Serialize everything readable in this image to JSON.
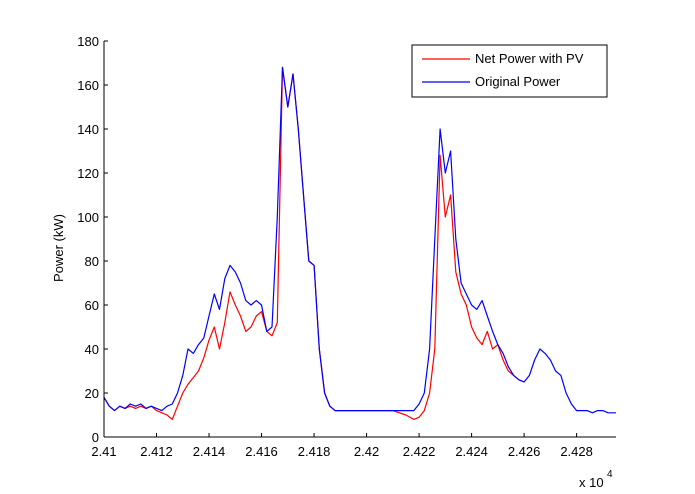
{
  "chart_data": {
    "type": "line",
    "title": "",
    "xlabel": "",
    "ylabel": "Power (kW)",
    "x_multiplier_label": "x 10",
    "x_multiplier_exponent": "4",
    "xlim": [
      2.41,
      2.4295
    ],
    "ylim": [
      0,
      180
    ],
    "x_ticks": [
      2.41,
      2.412,
      2.414,
      2.416,
      2.418,
      2.42,
      2.422,
      2.424,
      2.426,
      2.428
    ],
    "x_tick_labels": [
      "2.41",
      "2.412",
      "2.414",
      "2.416",
      "2.418",
      "2.42",
      "2.422",
      "2.424",
      "2.426",
      "2.428"
    ],
    "y_ticks": [
      0,
      20,
      40,
      60,
      80,
      100,
      120,
      140,
      160,
      180
    ],
    "y_tick_labels": [
      "0",
      "20",
      "40",
      "60",
      "80",
      "100",
      "120",
      "140",
      "160",
      "180"
    ],
    "grid": false,
    "legend_position": "top-right",
    "series": [
      {
        "name": "Net Power with PV",
        "color": "#ff0000",
        "x": [
          2.41,
          2.4102,
          2.4104,
          2.4106,
          2.4108,
          2.411,
          2.4112,
          2.4114,
          2.4116,
          2.4118,
          2.412,
          2.4122,
          2.4124,
          2.4126,
          2.4128,
          2.413,
          2.4132,
          2.4134,
          2.4136,
          2.4138,
          2.414,
          2.4142,
          2.4144,
          2.4146,
          2.4148,
          2.415,
          2.4152,
          2.4154,
          2.4156,
          2.4158,
          2.416,
          2.4162,
          2.4164,
          2.4166,
          2.4168,
          2.417,
          2.4172,
          2.4174,
          2.4176,
          2.4178,
          2.418,
          2.4182,
          2.4184,
          2.4186,
          2.4188,
          2.419,
          2.4195,
          2.42,
          2.4205,
          2.421,
          2.4215,
          2.4218,
          2.422,
          2.4222,
          2.4224,
          2.4226,
          2.4228,
          2.423,
          2.4232,
          2.4234,
          2.4236,
          2.4238,
          2.424,
          2.4242,
          2.4244,
          2.4246,
          2.4248,
          2.425,
          2.4252,
          2.4254,
          2.4256,
          2.4258,
          2.426
        ],
        "y": [
          18,
          14,
          12,
          14,
          13,
          14,
          13,
          14,
          13,
          14,
          12,
          11,
          10,
          8,
          14,
          20,
          24,
          27,
          30,
          36,
          44,
          50,
          40,
          52,
          66,
          60,
          55,
          48,
          50,
          55,
          57,
          48,
          46,
          52,
          168,
          150,
          165,
          140,
          110,
          80,
          78,
          40,
          20,
          14,
          12,
          12,
          12,
          12,
          12,
          12,
          10,
          8,
          9,
          12,
          20,
          40,
          128,
          100,
          110,
          75,
          65,
          60,
          50,
          45,
          42,
          48,
          40,
          42,
          35,
          30,
          28,
          26,
          25
        ]
      },
      {
        "name": "Original Power",
        "color": "#0000ff",
        "x": [
          2.41,
          2.4102,
          2.4104,
          2.4106,
          2.4108,
          2.411,
          2.4112,
          2.4114,
          2.4116,
          2.4118,
          2.412,
          2.4122,
          2.4124,
          2.4126,
          2.4128,
          2.413,
          2.4132,
          2.4134,
          2.4136,
          2.4138,
          2.414,
          2.4142,
          2.4144,
          2.4146,
          2.4148,
          2.415,
          2.4152,
          2.4154,
          2.4156,
          2.4158,
          2.416,
          2.4162,
          2.4164,
          2.4166,
          2.4168,
          2.417,
          2.4172,
          2.4174,
          2.4176,
          2.4178,
          2.418,
          2.4182,
          2.4184,
          2.4186,
          2.4188,
          2.419,
          2.4195,
          2.42,
          2.4205,
          2.421,
          2.4215,
          2.4218,
          2.422,
          2.4222,
          2.4224,
          2.4226,
          2.4228,
          2.423,
          2.4232,
          2.4234,
          2.4236,
          2.4238,
          2.424,
          2.4242,
          2.4244,
          2.4246,
          2.4248,
          2.425,
          2.4252,
          2.4254,
          2.4256,
          2.4258,
          2.426,
          2.4262,
          2.4264,
          2.4266,
          2.4268,
          2.427,
          2.4272,
          2.4274,
          2.4276,
          2.4278,
          2.428,
          2.4282,
          2.4284,
          2.4286,
          2.4288,
          2.429,
          2.4292,
          2.4295
        ],
        "y": [
          18,
          14,
          12,
          14,
          13,
          15,
          14,
          15,
          13,
          14,
          13,
          12,
          14,
          15,
          20,
          28,
          40,
          38,
          42,
          45,
          55,
          65,
          58,
          72,
          78,
          75,
          70,
          62,
          60,
          62,
          60,
          48,
          50,
          100,
          168,
          150,
          165,
          140,
          110,
          80,
          78,
          40,
          20,
          14,
          12,
          12,
          12,
          12,
          12,
          12,
          12,
          12,
          15,
          20,
          40,
          90,
          140,
          120,
          130,
          90,
          70,
          65,
          60,
          58,
          62,
          55,
          48,
          42,
          38,
          32,
          28,
          26,
          25,
          28,
          35,
          40,
          38,
          35,
          30,
          28,
          20,
          15,
          12,
          12,
          12,
          11,
          12,
          12,
          11,
          11
        ]
      }
    ]
  }
}
